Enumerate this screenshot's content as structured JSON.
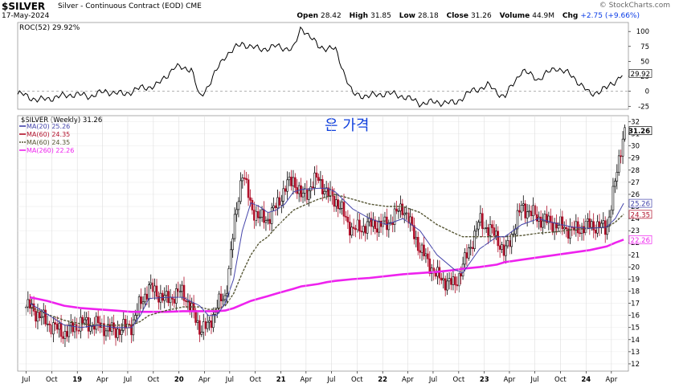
{
  "header": {
    "symbol": "$SILVER",
    "name": "Silver - Continuous Contract (EOD) CME",
    "date": "17-May-2024",
    "open_label": "Open",
    "open": "28.42",
    "high_label": "High",
    "high": "31.85",
    "low_label": "Low",
    "low": "28.18",
    "close_label": "Close",
    "close": "31.26",
    "volume_label": "Volume",
    "volume": "44.9M",
    "chg_label": "Chg",
    "chg": "+2.75 (+9.66%)",
    "brand": "© StockCharts.com"
  },
  "colors": {
    "price": "#b0102a",
    "ma20": "#4444aa",
    "ma60": "#555533",
    "ma260": "#ee22ee",
    "roc": "#000000",
    "annotation": "#1040dd"
  },
  "annotation": "은 가격",
  "chart_data": [
    {
      "type": "line",
      "title": "ROC(52) 29.92%",
      "series_label": "ROC(52)",
      "last_value": "29.92",
      "ylim": [
        -30,
        115
      ],
      "yticks": [
        100,
        75,
        50,
        25,
        0,
        -25
      ],
      "x": [
        "2018-06",
        "2018-08",
        "2018-10",
        "2018-12",
        "2019-02",
        "2019-04",
        "2019-06",
        "2019-08",
        "2019-10",
        "2019-12",
        "2020-02",
        "2020-03",
        "2020-04",
        "2020-06",
        "2020-08",
        "2020-10",
        "2020-12",
        "2021-02",
        "2021-03",
        "2021-05",
        "2021-07",
        "2021-09",
        "2021-11",
        "2022-01",
        "2022-03",
        "2022-05",
        "2022-07",
        "2022-09",
        "2022-11",
        "2023-01",
        "2023-03",
        "2023-05",
        "2023-07",
        "2023-09",
        "2023-11",
        "2024-01",
        "2024-03",
        "2024-05"
      ],
      "values": [
        -5,
        -15,
        -10,
        -5,
        -8,
        0,
        -5,
        5,
        10,
        40,
        38,
        -12,
        10,
        60,
        80,
        70,
        75,
        70,
        108,
        75,
        70,
        -5,
        -8,
        -3,
        -8,
        -20,
        -18,
        -20,
        0,
        10,
        -10,
        35,
        20,
        40,
        25,
        -5,
        5,
        29.92
      ]
    },
    {
      "type": "candlestick",
      "title": "$SILVER (Weekly) 31.26",
      "legend": [
        {
          "name": "MA(20) 25.26",
          "color": "#4444aa",
          "style": "solid"
        },
        {
          "name": "MA(60) 24.35",
          "color": "#b0102a",
          "style": "solid"
        },
        {
          "name": "MA(60) 24.35",
          "color": "#555533",
          "style": "dashed"
        },
        {
          "name": "MA(260) 22.26",
          "color": "#ee22ee",
          "style": "solid"
        }
      ],
      "ylim": [
        11.4,
        32.5
      ],
      "yticks": [
        32,
        31,
        30,
        29,
        28,
        27,
        26,
        25,
        24,
        23,
        22,
        21,
        20,
        19,
        18,
        17,
        16,
        15,
        14,
        13,
        12
      ],
      "last_labels": [
        {
          "value": 31.26,
          "text": "31.26",
          "color": "#000000"
        },
        {
          "value": 25.26,
          "text": "25.26",
          "color": "#4444aa"
        },
        {
          "value": 24.35,
          "text": "24.35",
          "color": "#b0102a"
        },
        {
          "value": 22.26,
          "text": "22.26",
          "color": "#ee22ee"
        }
      ],
      "x": [
        "2018-07",
        "2018-09",
        "2018-11",
        "2019-01",
        "2019-03",
        "2019-05",
        "2019-07",
        "2019-08",
        "2019-09",
        "2019-11",
        "2020-01",
        "2020-03",
        "2020-04",
        "2020-05",
        "2020-06",
        "2020-07",
        "2020-08",
        "2020-09",
        "2020-10",
        "2020-11",
        "2020-12",
        "2021-01",
        "2021-02",
        "2021-03",
        "2021-05",
        "2021-06",
        "2021-07",
        "2021-09",
        "2021-11",
        "2022-01",
        "2022-03",
        "2022-05",
        "2022-07",
        "2022-09",
        "2022-10",
        "2022-12",
        "2023-02",
        "2023-03",
        "2023-05",
        "2023-07",
        "2023-09",
        "2023-11",
        "2024-01",
        "2024-03",
        "2024-04",
        "2024-05"
      ],
      "close": [
        16.7,
        15.4,
        14.5,
        15.4,
        15.2,
        14.7,
        15.2,
        17.0,
        18.3,
        17.3,
        18.0,
        15.0,
        15.0,
        16.8,
        17.5,
        23.0,
        28.0,
        25.0,
        24.0,
        24.0,
        25.0,
        26.5,
        27.3,
        25.7,
        27.4,
        26.0,
        25.6,
        23.0,
        23.5,
        23.5,
        25.0,
        21.5,
        19.2,
        18.5,
        20.0,
        23.8,
        22.5,
        21.0,
        25.0,
        24.0,
        23.5,
        23.0,
        23.5,
        23.2,
        27.0,
        31.26
      ],
      "ma20": [
        17.0,
        16.1,
        15.2,
        15.0,
        15.2,
        15.0,
        15.0,
        16.0,
        17.4,
        17.5,
        17.5,
        16.8,
        16.0,
        16.0,
        17.0,
        19.0,
        23.0,
        25.3,
        25.0,
        24.5,
        24.7,
        25.2,
        26.2,
        26.4,
        26.5,
        26.5,
        26.2,
        24.8,
        24.0,
        23.5,
        24.0,
        23.0,
        21.0,
        19.8,
        19.5,
        21.5,
        22.5,
        22.5,
        23.5,
        24.0,
        23.6,
        23.3,
        23.2,
        23.3,
        24.0,
        25.26
      ],
      "ma60": [
        16.7,
        16.1,
        15.6,
        15.3,
        15.2,
        15.2,
        15.2,
        15.5,
        16.0,
        16.4,
        16.7,
        16.7,
        16.5,
        16.5,
        16.8,
        17.8,
        19.5,
        21.0,
        22.0,
        22.5,
        23.3,
        24.0,
        24.7,
        25.0,
        25.6,
        25.8,
        26.0,
        25.6,
        25.2,
        25.0,
        25.0,
        24.5,
        23.5,
        22.8,
        22.5,
        22.5,
        22.5,
        22.5,
        22.6,
        22.8,
        22.9,
        23.1,
        23.2,
        23.3,
        23.7,
        24.35
      ],
      "ma260": [
        17.5,
        17.2,
        16.8,
        16.6,
        16.5,
        16.4,
        16.3,
        16.3,
        16.3,
        16.3,
        16.35,
        16.35,
        16.35,
        16.35,
        16.4,
        16.6,
        16.9,
        17.2,
        17.4,
        17.6,
        17.8,
        18.0,
        18.2,
        18.4,
        18.6,
        18.75,
        18.85,
        19.0,
        19.1,
        19.25,
        19.4,
        19.5,
        19.6,
        19.75,
        19.85,
        20.0,
        20.2,
        20.4,
        20.6,
        20.8,
        21.0,
        21.2,
        21.4,
        21.7,
        22.0,
        22.26
      ]
    }
  ],
  "x_axis": {
    "ticks": [
      {
        "label": "Jul",
        "date": "2018-07"
      },
      {
        "label": "Oct",
        "date": "2018-10"
      },
      {
        "label": "19",
        "date": "2019-01",
        "bold": true
      },
      {
        "label": "Apr",
        "date": "2019-04"
      },
      {
        "label": "Jul",
        "date": "2019-07"
      },
      {
        "label": "Oct",
        "date": "2019-10"
      },
      {
        "label": "20",
        "date": "2020-01",
        "bold": true
      },
      {
        "label": "Apr",
        "date": "2020-04"
      },
      {
        "label": "Jul",
        "date": "2020-07"
      },
      {
        "label": "Oct",
        "date": "2020-10"
      },
      {
        "label": "21",
        "date": "2021-01",
        "bold": true
      },
      {
        "label": "Apr",
        "date": "2021-04"
      },
      {
        "label": "Jul",
        "date": "2021-07"
      },
      {
        "label": "Oct",
        "date": "2021-10"
      },
      {
        "label": "22",
        "date": "2022-01",
        "bold": true
      },
      {
        "label": "Apr",
        "date": "2022-04"
      },
      {
        "label": "Jul",
        "date": "2022-07"
      },
      {
        "label": "Oct",
        "date": "2022-10"
      },
      {
        "label": "23",
        "date": "2023-01",
        "bold": true
      },
      {
        "label": "Apr",
        "date": "2023-04"
      },
      {
        "label": "Jul",
        "date": "2023-07"
      },
      {
        "label": "Oct",
        "date": "2023-10"
      },
      {
        "label": "24",
        "date": "2024-01",
        "bold": true
      },
      {
        "label": "Apr",
        "date": "2024-04"
      }
    ]
  }
}
